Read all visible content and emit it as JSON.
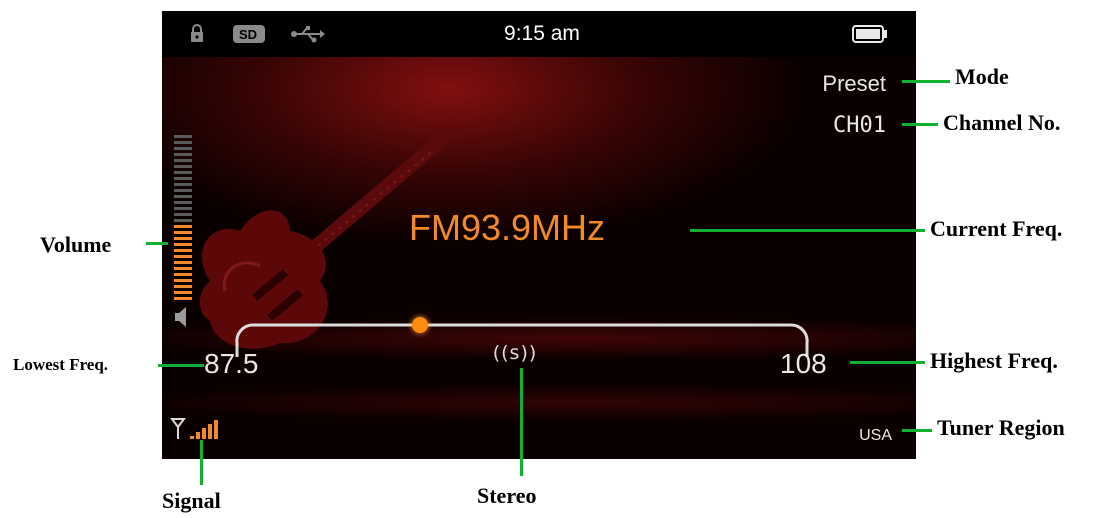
{
  "screen": {
    "time": "9:15 am",
    "mode": "Preset",
    "channel": "CH01",
    "current_frequency": "FM93.9MHz",
    "lowest_frequency": "87.5",
    "highest_frequency": "108",
    "stereo_indicator": "((s))",
    "tuner_region": "USA",
    "volume_level_fraction": 0.45,
    "tuner_position_fraction": 0.31,
    "signal_bars": 4,
    "colors": {
      "accent": "#f08a2a",
      "tuner_dot": "#ff8a10",
      "text": "#e8e8e8",
      "background": "#0a0000",
      "annotation_line": "#10b030"
    },
    "icons": [
      "lock-icon",
      "sd-card-icon",
      "usb-icon",
      "battery-icon",
      "speaker-icon",
      "antenna-signal-icon",
      "guitar-image"
    ]
  },
  "annotations": {
    "mode": "Mode",
    "channel": "Channel No.",
    "current_freq": "Current Freq.",
    "volume": "Volume",
    "lowest_freq": "Lowest Freq.",
    "highest_freq": "Highest Freq.",
    "tuner_region": "Tuner Region",
    "signal": "Signal",
    "stereo": "Stereo"
  }
}
